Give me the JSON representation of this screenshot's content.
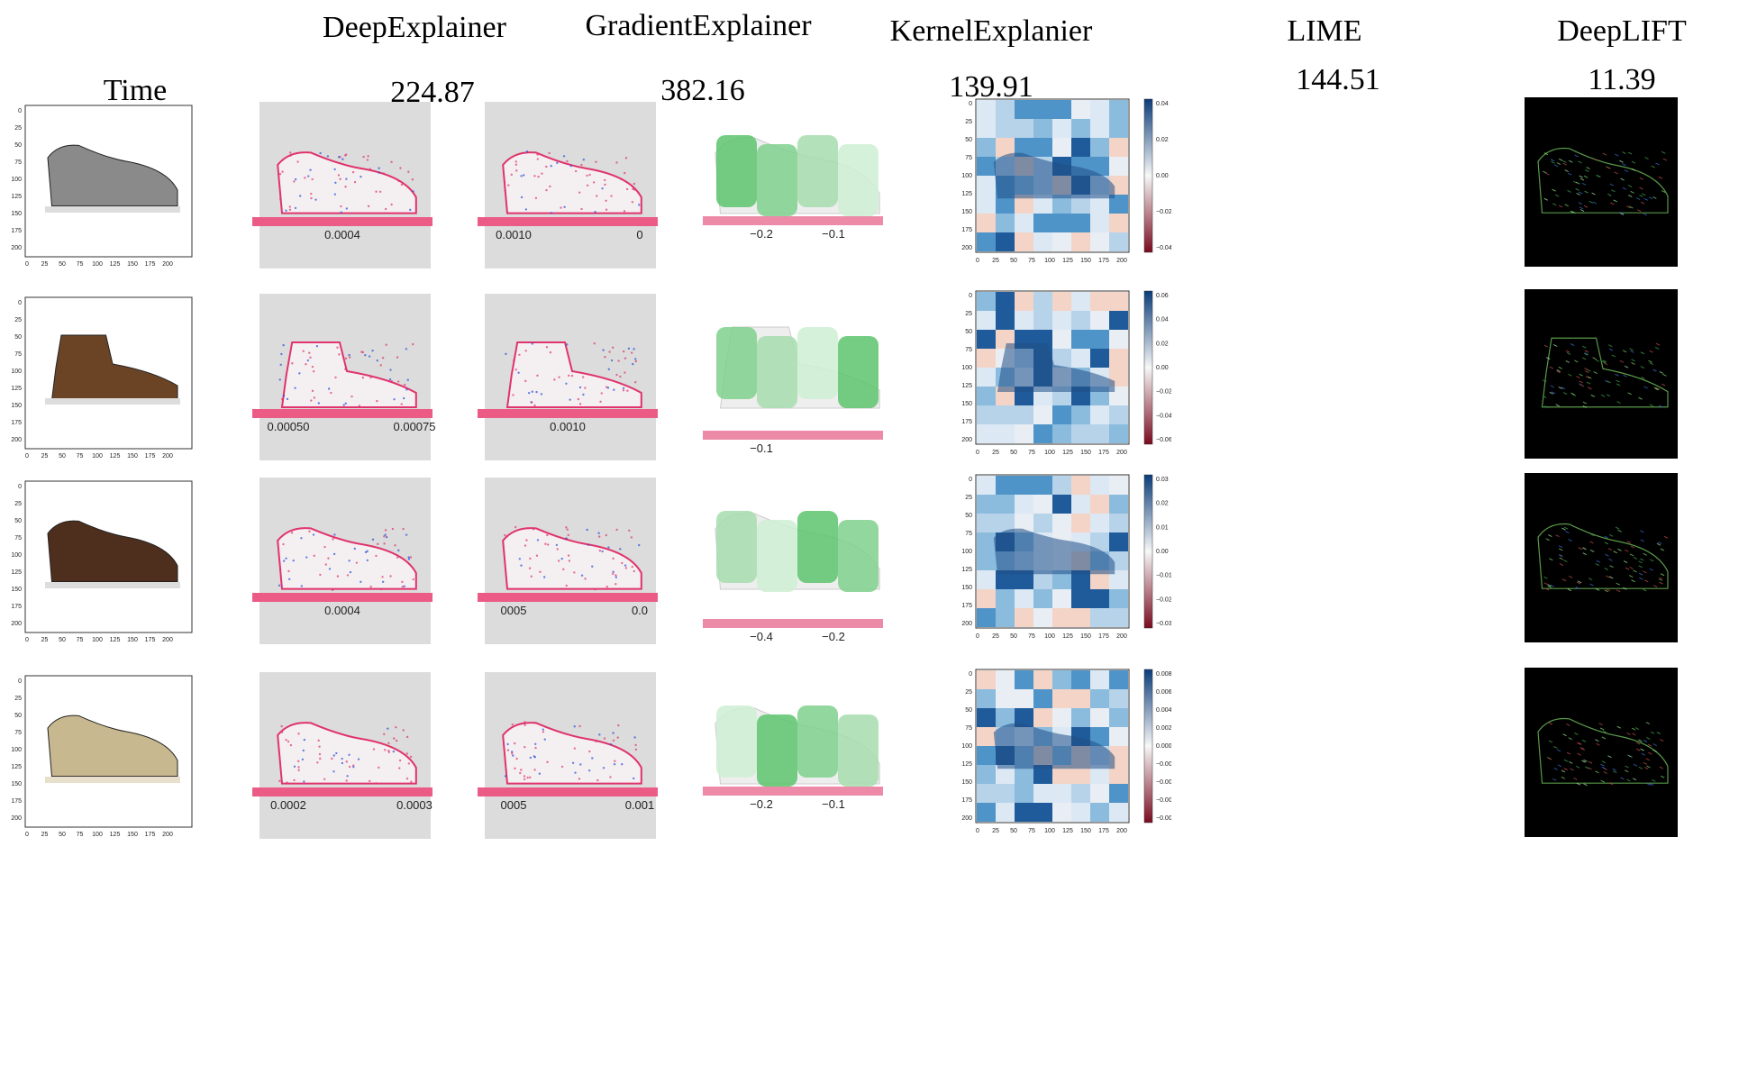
{
  "header": {
    "row_label": "Time",
    "methods": [
      {
        "name": "DeepExplainer",
        "time": "224.87"
      },
      {
        "name": "GradientExplainer",
        "time": "382.16"
      },
      {
        "name": "KernelExplanier",
        "time": "139.91"
      },
      {
        "name": "LIME",
        "time": "144.51"
      },
      {
        "name": "DeepLIFT",
        "time": "11.39"
      }
    ]
  },
  "input_axis_ticks": [
    "0",
    "25",
    "50",
    "75",
    "100",
    "125",
    "150",
    "175",
    "200"
  ],
  "shoes": [
    {
      "name": "canvas sneaker",
      "color": "#8a8a8a",
      "deep_ticks": [
        "0.0004"
      ],
      "grad_ticks": [
        "0.0010",
        "0"
      ],
      "kernel_ticks": [
        "−0.2",
        "−0.1"
      ],
      "lime_colorbar": [
        "0.04",
        "0.02",
        "0.00",
        "−0.02",
        "−0.04"
      ]
    },
    {
      "name": "ankle boot",
      "color": "#6b4426",
      "deep_ticks": [
        "0.00050",
        "0.00075"
      ],
      "grad_ticks": [
        "0.0010"
      ],
      "kernel_ticks": [
        "−0.1"
      ],
      "lime_colorbar": [
        "0.06",
        "0.04",
        "0.02",
        "0.00",
        "−0.02",
        "−0.04",
        "−0.06"
      ]
    },
    {
      "name": "leather oxford",
      "color": "#4e2e1c",
      "deep_ticks": [
        "0.0004"
      ],
      "grad_ticks": [
        "0005",
        "0.0"
      ],
      "kernel_ticks": [
        "−0.4",
        "−0.2"
      ],
      "lime_colorbar": [
        "0.03",
        "0.02",
        "0.01",
        "0.00",
        "−0.01",
        "−0.02",
        "−0.03"
      ]
    },
    {
      "name": "suede moccasin",
      "color": "#c8b88f",
      "deep_ticks": [
        "0.0002",
        "0.0003"
      ],
      "grad_ticks": [
        "0005",
        "0.001"
      ],
      "kernel_ticks": [
        "−0.2",
        "−0.1"
      ],
      "lime_colorbar": [
        "0.008",
        "0.006",
        "0.004",
        "0.002",
        "0.000",
        "−0.002",
        "−0.004",
        "−0.006",
        "−0.008"
      ]
    }
  ]
}
